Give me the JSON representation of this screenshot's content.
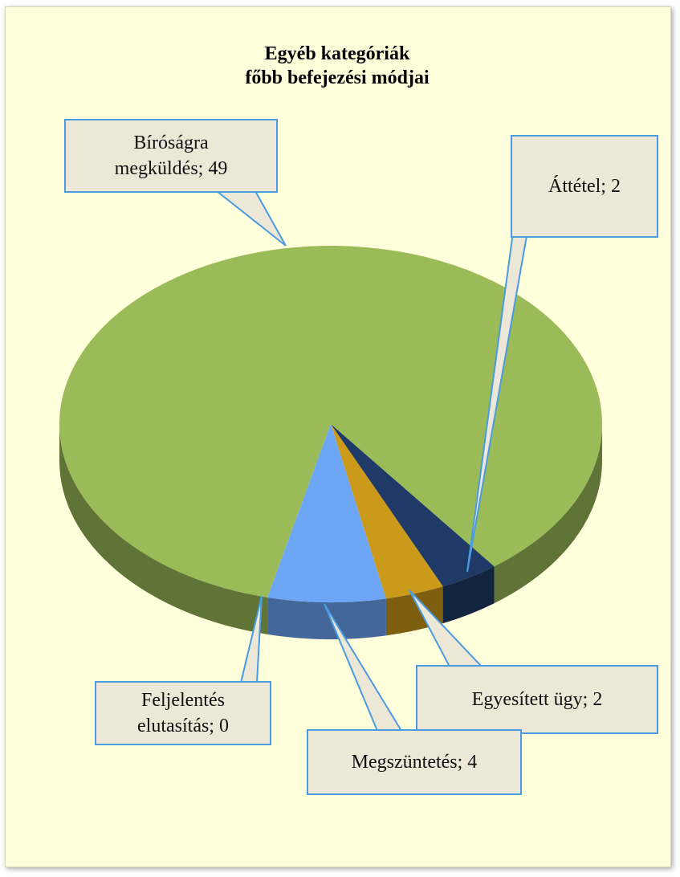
{
  "chart_data": {
    "type": "pie",
    "title": "Egyéb kategóriák\nfőbb befejezési módjai",
    "values": [
      49,
      2,
      2,
      4,
      0
    ],
    "value_labels": [
      "Bíróságra\nmegküldés; 49",
      "Áttétel; 2",
      "Egyesített ügy; 2",
      "Megszüntetés; 4",
      "Feljelentés\nelutasítás; 0"
    ],
    "colors": [
      "#9bbb59",
      "#1f3a66",
      "#cc9a1a",
      "#6ea6f6",
      "#c0504d"
    ]
  }
}
